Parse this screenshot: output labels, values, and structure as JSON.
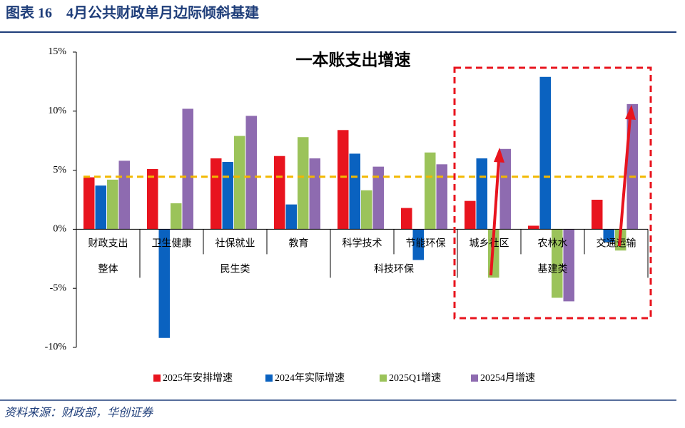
{
  "header": {
    "title": "图表 16　4月公共财政单月边际倾斜基建"
  },
  "source": "资料来源：财政部，华创证券",
  "chart_data": {
    "type": "bar",
    "title": "一本账支出增速",
    "categories": [
      "财政支出",
      "卫生健康",
      "社保就业",
      "教育",
      "科学技术",
      "节能环保",
      "城乡社区",
      "农林水",
      "交通运输"
    ],
    "groups": [
      {
        "label": "整体",
        "span": 1
      },
      {
        "label": "民生类",
        "span": 3
      },
      {
        "label": "科技环保",
        "span": 2
      },
      {
        "label": "基建类",
        "span": 3
      }
    ],
    "series": [
      {
        "name": "2025年安排增速",
        "color": "#e8141e",
        "values": [
          4.4,
          5.1,
          6.0,
          6.2,
          8.4,
          1.8,
          2.4,
          0.3,
          2.5
        ]
      },
      {
        "name": "2024年实际增速",
        "color": "#0a62c0",
        "values": [
          3.7,
          -9.2,
          5.7,
          2.1,
          6.4,
          -2.6,
          6.0,
          12.9,
          -1.1
        ]
      },
      {
        "name": "2025Q1增速",
        "color": "#9bc35a",
        "values": [
          4.2,
          2.2,
          7.9,
          7.8,
          3.3,
          6.5,
          -4.1,
          -5.8,
          -1.8
        ]
      },
      {
        "name": "20254月增速",
        "color": "#8e6bb0",
        "values": [
          5.8,
          10.2,
          9.6,
          6.0,
          5.3,
          5.5,
          6.8,
          -6.1,
          10.6
        ]
      }
    ],
    "ylim": [
      -10,
      15
    ],
    "yticks": [
      {
        "value": -10,
        "label": "-10%"
      },
      {
        "value": -5,
        "label": "-5%"
      },
      {
        "value": 0,
        "label": "0%"
      },
      {
        "value": 5,
        "label": "5%"
      },
      {
        "value": 10,
        "label": "10%"
      },
      {
        "value": 15,
        "label": "15%"
      }
    ],
    "reference_line": 4.45,
    "reference_color": "#f2b800",
    "legend": "bottom"
  }
}
